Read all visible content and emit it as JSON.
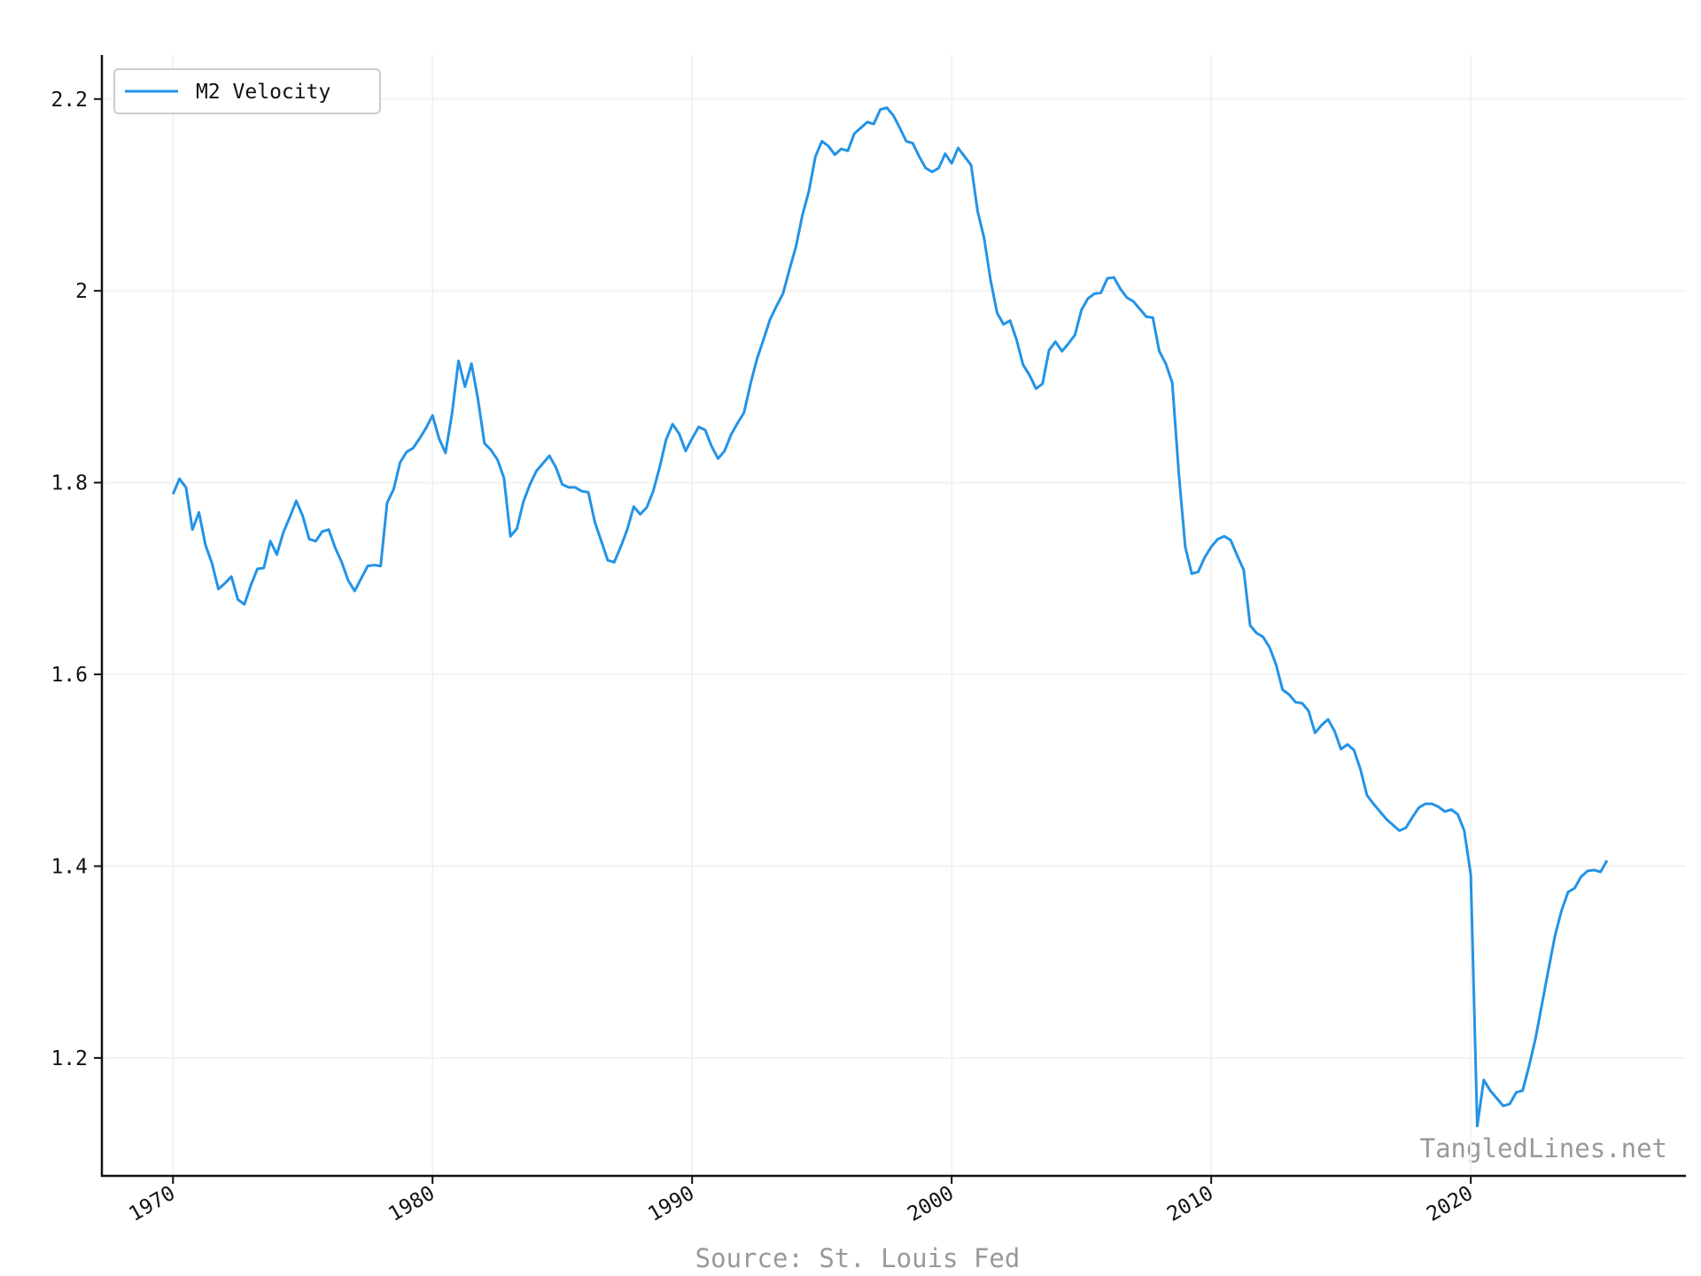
{
  "chart_data": {
    "type": "line",
    "series": [
      {
        "name": "M2 Velocity",
        "color": "#2393e6",
        "values": [
          1.788,
          1.804,
          1.795,
          1.751,
          1.769,
          1.735,
          1.716,
          1.689,
          1.695,
          1.702,
          1.678,
          1.673,
          1.693,
          1.71,
          1.711,
          1.739,
          1.725,
          1.748,
          1.764,
          1.781,
          1.765,
          1.741,
          1.739,
          1.749,
          1.751,
          1.732,
          1.717,
          1.698,
          1.687,
          1.7,
          1.713,
          1.714,
          1.713,
          1.779,
          1.793,
          1.821,
          1.832,
          1.836,
          1.846,
          1.857,
          1.87,
          1.846,
          1.831,
          1.872,
          1.927,
          1.9,
          1.924,
          1.887,
          1.841,
          1.834,
          1.824,
          1.805,
          1.744,
          1.752,
          1.78,
          1.798,
          1.812,
          1.82,
          1.828,
          1.816,
          1.798,
          1.795,
          1.795,
          1.791,
          1.79,
          1.759,
          1.739,
          1.719,
          1.717,
          1.733,
          1.751,
          1.775,
          1.767,
          1.774,
          1.791,
          1.816,
          1.845,
          1.861,
          1.851,
          1.833,
          1.846,
          1.858,
          1.855,
          1.838,
          1.825,
          1.833,
          1.85,
          1.862,
          1.873,
          1.903,
          1.929,
          1.949,
          1.97,
          1.984,
          1.997,
          2.022,
          2.046,
          2.079,
          2.104,
          2.14,
          2.156,
          2.151,
          2.142,
          2.148,
          2.146,
          2.164,
          2.17,
          2.176,
          2.174,
          2.189,
          2.191,
          2.183,
          2.17,
          2.156,
          2.154,
          2.14,
          2.128,
          2.124,
          2.128,
          2.143,
          2.133,
          2.149,
          2.14,
          2.131,
          2.083,
          2.055,
          2.011,
          1.977,
          1.965,
          1.969,
          1.949,
          1.923,
          1.912,
          1.898,
          1.903,
          1.938,
          1.947,
          1.937,
          1.945,
          1.954,
          1.98,
          1.992,
          1.997,
          1.998,
          2.013,
          2.014,
          2.002,
          1.993,
          1.989,
          1.981,
          1.973,
          1.972,
          1.937,
          1.924,
          1.904,
          1.81,
          1.733,
          1.705,
          1.707,
          1.722,
          1.733,
          1.741,
          1.744,
          1.74,
          1.724,
          1.709,
          1.651,
          1.643,
          1.639,
          1.628,
          1.61,
          1.584,
          1.579,
          1.571,
          1.57,
          1.562,
          1.539,
          1.547,
          1.553,
          1.541,
          1.522,
          1.527,
          1.521,
          1.501,
          1.474,
          1.465,
          1.457,
          1.449,
          1.443,
          1.437,
          1.44,
          1.451,
          1.461,
          1.465,
          1.465,
          1.462,
          1.457,
          1.459,
          1.454,
          1.437,
          1.391,
          1.129,
          1.177,
          1.166,
          1.158,
          1.15,
          1.152,
          1.164,
          1.166,
          1.192,
          1.221,
          1.257,
          1.293,
          1.328,
          1.354,
          1.373,
          1.377,
          1.389,
          1.395,
          1.396,
          1.394,
          1.406
        ]
      }
    ],
    "x": [
      1970,
      1970.25,
      1970.5,
      1970.75,
      1971,
      1971.25,
      1971.5,
      1971.75,
      1972,
      1972.25,
      1972.5,
      1972.75,
      1973,
      1973.25,
      1973.5,
      1973.75,
      1974,
      1974.25,
      1974.5,
      1974.75,
      1975,
      1975.25,
      1975.5,
      1975.75,
      1976,
      1976.25,
      1976.5,
      1976.75,
      1977,
      1977.25,
      1977.5,
      1977.75,
      1978,
      1978.25,
      1978.5,
      1978.75,
      1979,
      1979.25,
      1979.5,
      1979.75,
      1980,
      1980.25,
      1980.5,
      1980.75,
      1981,
      1981.25,
      1981.5,
      1981.75,
      1982,
      1982.25,
      1982.5,
      1982.75,
      1983,
      1983.25,
      1983.5,
      1983.75,
      1984,
      1984.25,
      1984.5,
      1984.75,
      1985,
      1985.25,
      1985.5,
      1985.75,
      1986,
      1986.25,
      1986.5,
      1986.75,
      1987,
      1987.25,
      1987.5,
      1987.75,
      1988,
      1988.25,
      1988.5,
      1988.75,
      1989,
      1989.25,
      1989.5,
      1989.75,
      1990,
      1990.25,
      1990.5,
      1990.75,
      1991,
      1991.25,
      1991.5,
      1991.75,
      1992,
      1992.25,
      1992.5,
      1992.75,
      1993,
      1993.25,
      1993.5,
      1993.75,
      1994,
      1994.25,
      1994.5,
      1994.75,
      1995,
      1995.25,
      1995.5,
      1995.75,
      1996,
      1996.25,
      1996.5,
      1996.75,
      1997,
      1997.25,
      1997.5,
      1997.75,
      1998,
      1998.25,
      1998.5,
      1998.75,
      1999,
      1999.25,
      1999.5,
      1999.75,
      2000,
      2000.25,
      2000.5,
      2000.75,
      2001,
      2001.25,
      2001.5,
      2001.75,
      2002,
      2002.25,
      2002.5,
      2002.75,
      2003,
      2003.25,
      2003.5,
      2003.75,
      2004,
      2004.25,
      2004.5,
      2004.75,
      2005,
      2005.25,
      2005.5,
      2005.75,
      2006,
      2006.25,
      2006.5,
      2006.75,
      2007,
      2007.25,
      2007.5,
      2007.75,
      2008,
      2008.25,
      2008.5,
      2008.75,
      2009,
      2009.25,
      2009.5,
      2009.75,
      2010,
      2010.25,
      2010.5,
      2010.75,
      2011,
      2011.25,
      2011.5,
      2011.75,
      2012,
      2012.25,
      2012.5,
      2012.75,
      2013,
      2013.25,
      2013.5,
      2013.75,
      2014,
      2014.25,
      2014.5,
      2014.75,
      2015,
      2015.25,
      2015.5,
      2015.75,
      2016,
      2016.25,
      2016.5,
      2016.75,
      2017,
      2017.25,
      2017.5,
      2017.75,
      2018,
      2018.25,
      2018.5,
      2018.75,
      2019,
      2019.25,
      2019.5,
      2019.75,
      2020,
      2020.25,
      2020.5,
      2020.75,
      2021,
      2021.25,
      2021.5,
      2021.75,
      2022,
      2022.25,
      2022.5,
      2022.75,
      2023,
      2023.25,
      2023.5,
      2023.75,
      2024,
      2024.25,
      2024.5,
      2024.75,
      2025,
      2025.25
    ],
    "xlim": [
      1967.26,
      2028.29
    ],
    "xticks": [
      1970,
      1980,
      1990,
      2000,
      2010,
      2020
    ],
    "ylim": [
      1.077,
      2.246
    ],
    "yticks": [
      1.2,
      1.4,
      1.6,
      1.8,
      2.0,
      2.2
    ],
    "grid": true,
    "legend": "upper left",
    "annotations": [
      "TangledLines.net",
      "Source: St. Louis Fed"
    ]
  }
}
